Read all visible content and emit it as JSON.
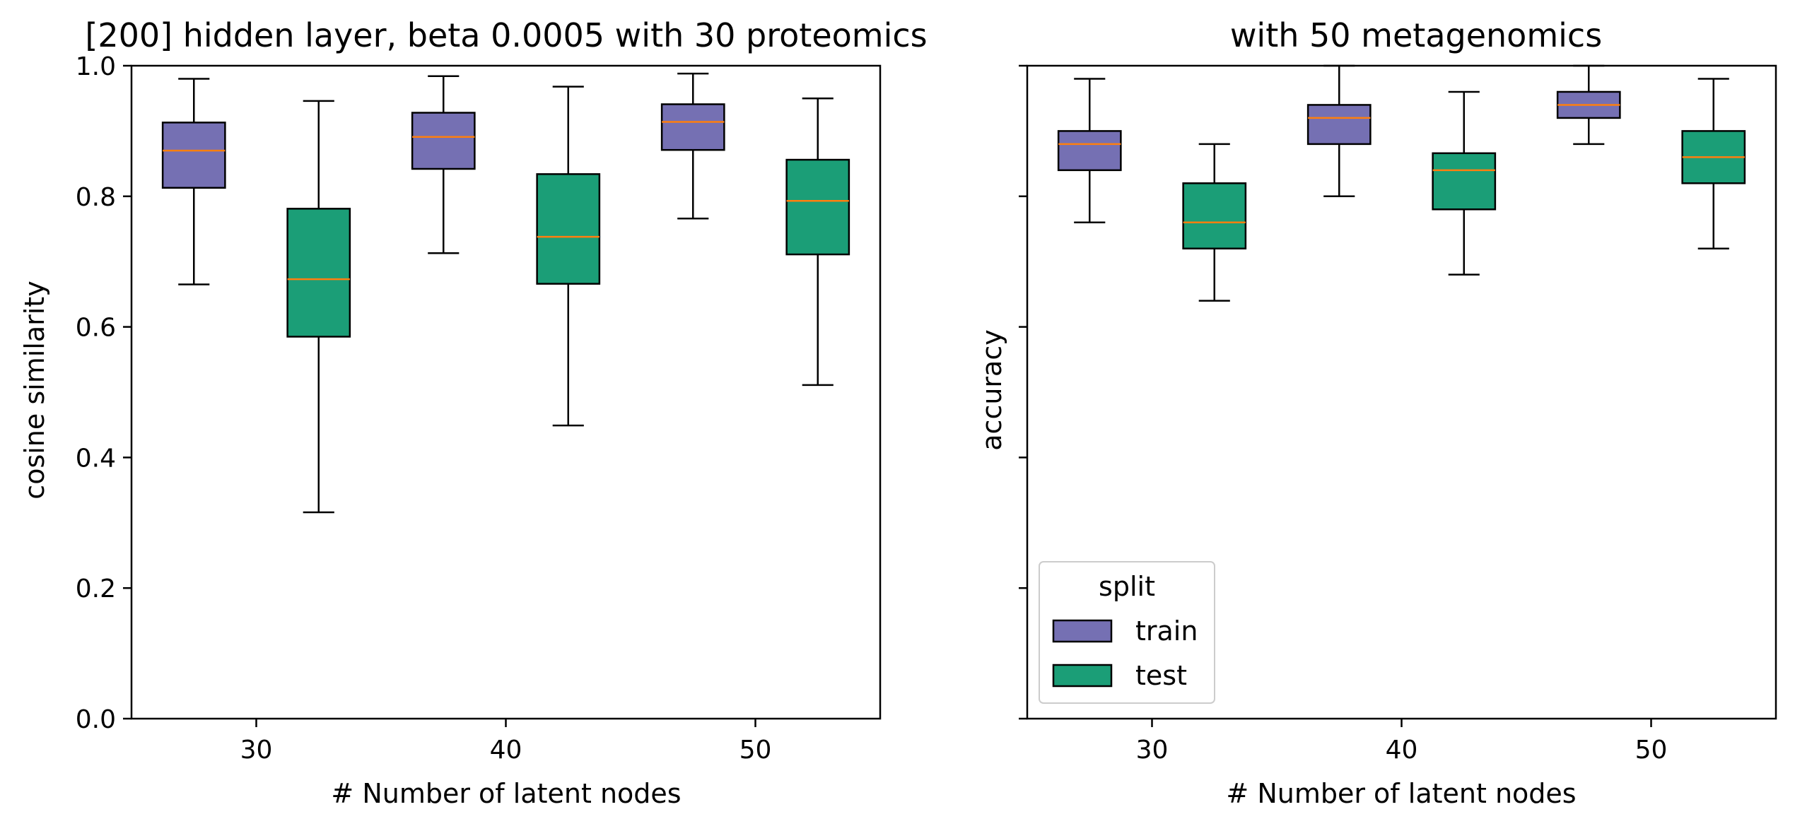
{
  "figure": {},
  "chart_data": [
    {
      "type": "box",
      "title": "[200] hidden layer, beta 0.0005 with 30 proteomics",
      "xlabel": "# Number of latent nodes",
      "ylabel": "cosine similarity",
      "xlim": [
        25,
        55
      ],
      "ylim": [
        0.0,
        1.0
      ],
      "xticks": [
        30,
        40,
        50
      ],
      "xtick_labels": [
        "30",
        "40",
        "50"
      ],
      "yticks": [
        0.0,
        0.2,
        0.4,
        0.6,
        0.8,
        1.0
      ],
      "ytick_labels": [
        "0.0",
        "0.2",
        "0.4",
        "0.6",
        "0.8",
        "1.0"
      ],
      "show_ytick_labels": true,
      "grid": false,
      "boxes": [
        {
          "series": "train",
          "x": 27.5,
          "whislo": 0.665,
          "q1": 0.813,
          "med": 0.87,
          "q3": 0.913,
          "whishi": 0.98
        },
        {
          "series": "test",
          "x": 32.5,
          "whislo": 0.316,
          "q1": 0.585,
          "med": 0.673,
          "q3": 0.781,
          "whishi": 0.946
        },
        {
          "series": "train",
          "x": 37.5,
          "whislo": 0.713,
          "q1": 0.842,
          "med": 0.891,
          "q3": 0.928,
          "whishi": 0.984
        },
        {
          "series": "test",
          "x": 42.5,
          "whislo": 0.449,
          "q1": 0.666,
          "med": 0.738,
          "q3": 0.834,
          "whishi": 0.968
        },
        {
          "series": "train",
          "x": 47.5,
          "whislo": 0.766,
          "q1": 0.871,
          "med": 0.914,
          "q3": 0.941,
          "whishi": 0.988
        },
        {
          "series": "test",
          "x": 52.5,
          "whislo": 0.511,
          "q1": 0.711,
          "med": 0.793,
          "q3": 0.856,
          "whishi": 0.95
        }
      ]
    },
    {
      "type": "box",
      "title": "with 50 metagenomics",
      "xlabel": "# Number of latent nodes",
      "ylabel": "accuracy",
      "xlim": [
        25,
        55
      ],
      "ylim": [
        0.0,
        1.0
      ],
      "xticks": [
        30,
        40,
        50
      ],
      "xtick_labels": [
        "30",
        "40",
        "50"
      ],
      "yticks": [
        0.0,
        0.2,
        0.4,
        0.6,
        0.8,
        1.0
      ],
      "show_ytick_labels": false,
      "grid": false,
      "legend": {
        "title": "split",
        "placement": "lower-left",
        "entries": [
          {
            "label": "train",
            "series": "train"
          },
          {
            "label": "test",
            "series": "test"
          }
        ]
      },
      "boxes": [
        {
          "series": "train",
          "x": 27.5,
          "whislo": 0.76,
          "q1": 0.84,
          "med": 0.88,
          "q3": 0.9,
          "whishi": 0.98
        },
        {
          "series": "test",
          "x": 32.5,
          "whislo": 0.64,
          "q1": 0.72,
          "med": 0.76,
          "q3": 0.82,
          "whishi": 0.88
        },
        {
          "series": "train",
          "x": 37.5,
          "whislo": 0.8,
          "q1": 0.88,
          "med": 0.92,
          "q3": 0.94,
          "whishi": 1.0
        },
        {
          "series": "test",
          "x": 42.5,
          "whislo": 0.68,
          "q1": 0.78,
          "med": 0.84,
          "q3": 0.866,
          "whishi": 0.96
        },
        {
          "series": "train",
          "x": 47.5,
          "whislo": 0.88,
          "q1": 0.92,
          "med": 0.94,
          "q3": 0.96,
          "whishi": 1.0
        },
        {
          "series": "test",
          "x": 52.5,
          "whislo": 0.72,
          "q1": 0.82,
          "med": 0.86,
          "q3": 0.9,
          "whishi": 0.98
        }
      ]
    }
  ],
  "colors": {
    "train": "#7570b3",
    "test": "#1b9e77",
    "median": "#ff7f0e",
    "edge": "#000000"
  }
}
